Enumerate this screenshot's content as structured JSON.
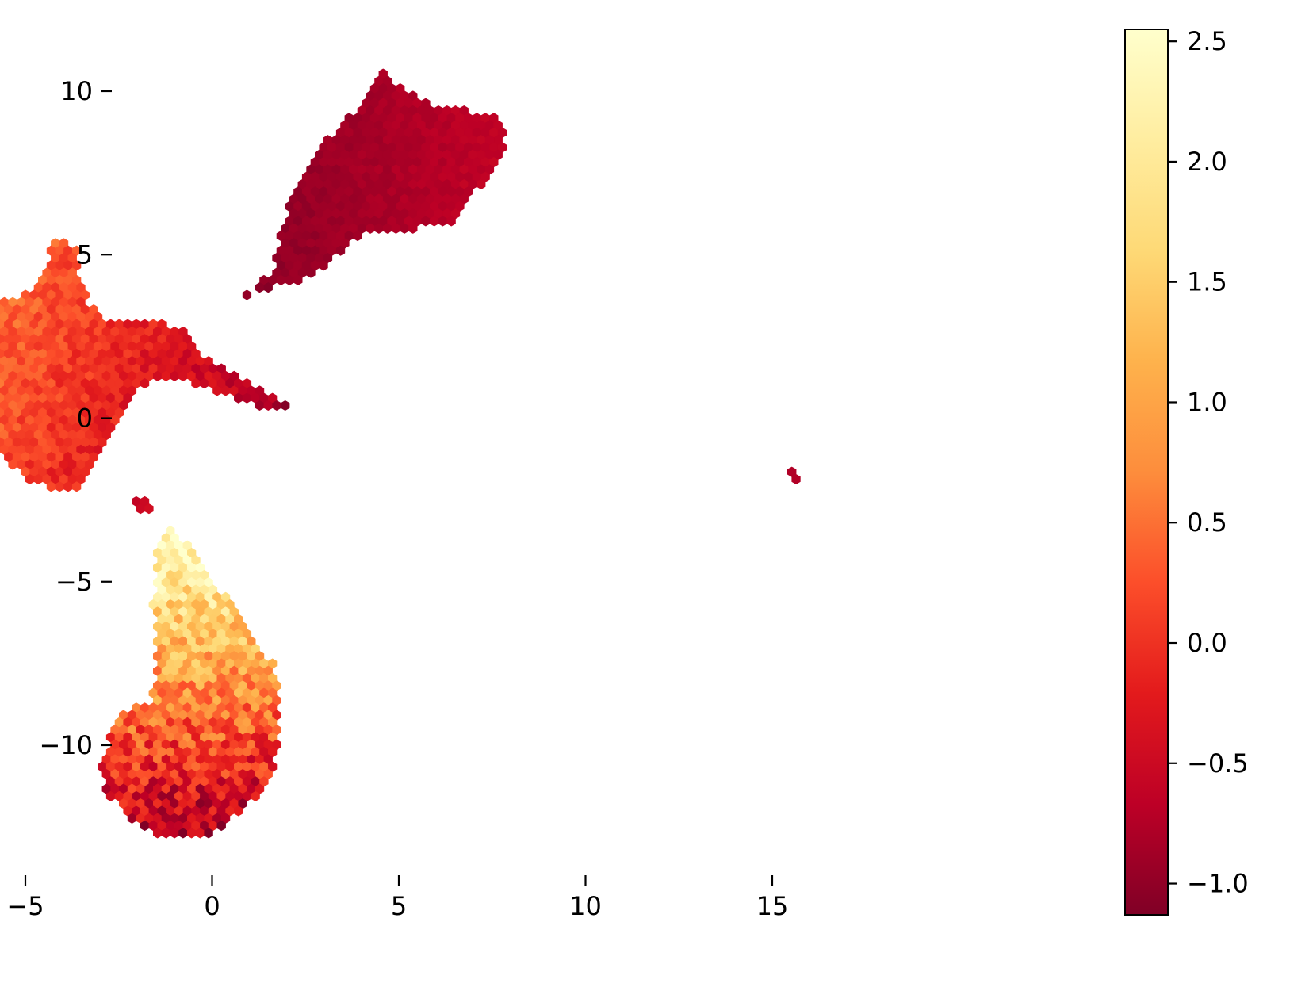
{
  "chart_data": {
    "type": "hexbin",
    "title": "",
    "xlabel": "",
    "ylabel": "",
    "xlim": [
      -10.2,
      17.5
    ],
    "ylim": [
      -14.0,
      12.7
    ],
    "x_ticks": [
      -5,
      0,
      5,
      10,
      15
    ],
    "x_tick_labels": [
      "−5",
      "0",
      "5",
      "10",
      "15"
    ],
    "y_ticks": [
      10,
      5,
      0,
      -5,
      -10
    ],
    "y_tick_labels": [
      "10",
      "5",
      "0",
      "−5",
      "−10"
    ],
    "grid": false,
    "colormap": "YlOrRd_r",
    "colorbar": {
      "range": [
        -1.13,
        2.55
      ],
      "ticks": [
        2.5,
        2.0,
        1.5,
        1.0,
        0.5,
        0.0,
        -0.5,
        -1.0
      ],
      "tick_labels": [
        "2.5",
        "2.0",
        "1.5",
        "1.0",
        "0.5",
        "0.0",
        "−0.5",
        "−1.0"
      ],
      "colors": [
        "#800026",
        "#bd0026",
        "#e31a1c",
        "#fc4e2a",
        "#fd8d3c",
        "#feb24c",
        "#fed976",
        "#ffeda0",
        "#ffffcc"
      ]
    },
    "clusters": [
      {
        "outline": [
          [
            4.5,
            10.8
          ],
          [
            4.9,
            10.2
          ],
          [
            6.0,
            9.6
          ],
          [
            7.0,
            9.4
          ],
          [
            7.9,
            9.1
          ],
          [
            7.8,
            8.2
          ],
          [
            7.2,
            7.1
          ],
          [
            6.4,
            6.0
          ],
          [
            5.5,
            5.8
          ],
          [
            4.0,
            5.6
          ],
          [
            3.2,
            4.8
          ],
          [
            2.3,
            4.2
          ],
          [
            1.3,
            3.9
          ],
          [
            0.4,
            3.4
          ],
          [
            1.1,
            3.9
          ],
          [
            1.6,
            4.5
          ],
          [
            1.8,
            5.6
          ],
          [
            2.2,
            6.9
          ],
          [
            2.8,
            8.1
          ],
          [
            3.4,
            9.0
          ],
          [
            4.2,
            9.8
          ],
          [
            4.4,
            10.5
          ]
        ],
        "value_low": -1.1,
        "value_high": -0.6,
        "gradient_angle": 0
      },
      {
        "outline": [
          [
            -4.3,
            5.4
          ],
          [
            -3.6,
            5.3
          ],
          [
            -3.5,
            4.3
          ],
          [
            -3.3,
            3.5
          ],
          [
            -2.8,
            2.9
          ],
          [
            -1.4,
            2.9
          ],
          [
            -0.6,
            2.6
          ],
          [
            -0.3,
            2.0
          ],
          [
            0.4,
            1.4
          ],
          [
            1.1,
            1.0
          ],
          [
            1.8,
            0.6
          ],
          [
            2.2,
            0.3
          ],
          [
            1.7,
            0.2
          ],
          [
            0.9,
            0.5
          ],
          [
            -0.1,
            0.9
          ],
          [
            -1.2,
            1.3
          ],
          [
            -2.0,
            0.8
          ],
          [
            -2.7,
            -0.3
          ],
          [
            -3.2,
            -1.6
          ],
          [
            -3.5,
            -2.3
          ],
          [
            -4.8,
            -2.0
          ],
          [
            -5.9,
            -0.9
          ],
          [
            -6.6,
            0.4
          ],
          [
            -6.7,
            1.7
          ],
          [
            -6.6,
            3.5
          ],
          [
            -5.8,
            3.6
          ],
          [
            -4.9,
            3.8
          ],
          [
            -4.4,
            4.5
          ]
        ],
        "value_low": -0.9,
        "value_high": 0.6,
        "gradient_angle": 200
      },
      {
        "outline": [
          [
            -2.1,
            -2.4
          ],
          [
            -1.7,
            -2.4
          ],
          [
            -1.6,
            -2.9
          ],
          [
            -2.0,
            -3.0
          ]
        ],
        "value_low": -0.6,
        "value_high": -0.4,
        "gradient_angle": 0
      },
      {
        "outline": [
          [
            -1.1,
            -3.4
          ],
          [
            -0.5,
            -4.0
          ],
          [
            0.2,
            -5.2
          ],
          [
            1.0,
            -6.5
          ],
          [
            1.7,
            -7.6
          ],
          [
            1.8,
            -8.7
          ],
          [
            1.8,
            -10.2
          ],
          [
            1.4,
            -11.4
          ],
          [
            0.5,
            -12.3
          ],
          [
            0.0,
            -12.8
          ],
          [
            -1.2,
            -12.9
          ],
          [
            -2.1,
            -12.4
          ],
          [
            -2.8,
            -11.5
          ],
          [
            -3.0,
            -10.6
          ],
          [
            -2.7,
            -9.6
          ],
          [
            -2.3,
            -8.9
          ],
          [
            -1.6,
            -8.6
          ],
          [
            -1.5,
            -7.0
          ],
          [
            -1.6,
            -5.5
          ],
          [
            -1.5,
            -4.5
          ],
          [
            -1.5,
            -3.7
          ]
        ],
        "value_low": 2.55,
        "value_high": -0.9,
        "gradient_angle": 90
      },
      {
        "outline": [
          [
            15.5,
            -1.6
          ],
          [
            15.8,
            -1.7
          ],
          [
            15.6,
            -2.0
          ],
          [
            15.4,
            -1.9
          ]
        ],
        "value_low": -0.8,
        "value_high": -0.7,
        "gradient_angle": 0
      }
    ]
  }
}
